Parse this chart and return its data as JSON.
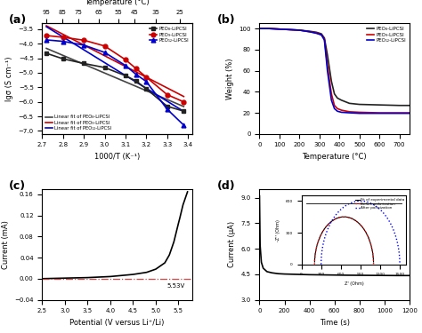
{
  "panel_a": {
    "title": "Temperature (°C)",
    "xlabel": "1000/T (K⁻¹)",
    "ylabel": "lgσ (S cm⁻¹)",
    "top_xticks": [
      95,
      85,
      75,
      65,
      55,
      45,
      35,
      25
    ],
    "top_xvals": [
      2.72,
      2.795,
      2.875,
      2.97,
      3.065,
      3.145,
      3.245,
      3.36
    ],
    "xlim": [
      2.7,
      3.42
    ],
    "ylim": [
      -7.1,
      -3.3
    ],
    "yticks": [
      -7.0,
      -6.5,
      -6.0,
      -5.5,
      -5.0,
      -4.5,
      -4.0,
      -3.5
    ],
    "series": [
      {
        "label": "PEO₈-LiPCSI",
        "color": "#222222",
        "marker": "s",
        "x": [
          2.72,
          2.8,
          2.9,
          3.0,
          3.1,
          3.15,
          3.2,
          3.3,
          3.38
        ],
        "y": [
          -4.33,
          -4.52,
          -4.68,
          -4.82,
          -5.1,
          -5.28,
          -5.55,
          -6.15,
          -6.32
        ]
      },
      {
        "label": "PEO₉-LiPCSI",
        "color": "#cc0000",
        "marker": "o",
        "x": [
          2.72,
          2.8,
          2.9,
          3.0,
          3.1,
          3.15,
          3.2,
          3.3,
          3.38
        ],
        "y": [
          -3.72,
          -3.78,
          -3.88,
          -4.08,
          -4.55,
          -4.85,
          -5.15,
          -5.75,
          -6.0
        ]
      },
      {
        "label": "PEO₁₂-LiPCSI",
        "color": "#0000cc",
        "marker": "^",
        "x": [
          2.72,
          2.8,
          2.9,
          3.0,
          3.1,
          3.15,
          3.2,
          3.3,
          3.38
        ],
        "y": [
          -3.87,
          -3.92,
          -4.05,
          -4.3,
          -4.75,
          -5.05,
          -5.3,
          -6.25,
          -6.8
        ]
      }
    ],
    "linear_labels": [
      "Linear fit of PEO₈-LiPCSI",
      "Linear fit of PEO₉-LiPCSI",
      "Linear fit of PEO₁₂-LiPCSI"
    ],
    "linear_colors": [
      "#444444",
      "#cc0000",
      "#0000cc"
    ]
  },
  "panel_b": {
    "xlabel": "Temperature (°C)",
    "ylabel": "Weight (%)",
    "xlim": [
      0,
      750
    ],
    "ylim": [
      0,
      105
    ],
    "yticks": [
      0,
      20,
      40,
      60,
      80,
      100
    ],
    "xticks": [
      0,
      100,
      200,
      300,
      400,
      500,
      600,
      700
    ],
    "series": [
      {
        "label": "PEO₈-LiPCSI",
        "color": "#222222",
        "x": [
          0,
          50,
          100,
          150,
          200,
          250,
          285,
          310,
          325,
          340,
          360,
          375,
          390,
          410,
          450,
          500,
          600,
          700,
          750
        ],
        "y": [
          100,
          100,
          99.5,
          99,
          98.5,
          97.5,
          96.5,
          95,
          91,
          75,
          50,
          38,
          34,
          32,
          29,
          28,
          27.5,
          27,
          27
        ]
      },
      {
        "label": "PEO₉-LiPCSI",
        "color": "#cc0000",
        "x": [
          0,
          50,
          100,
          150,
          200,
          250,
          285,
          310,
          325,
          340,
          360,
          375,
          390,
          410,
          450,
          500,
          600,
          700,
          750
        ],
        "y": [
          100,
          100,
          99.5,
          99,
          98.5,
          97,
          96,
          94,
          90,
          65,
          38,
          27,
          24,
          22.5,
          21,
          20.5,
          20,
          20,
          20
        ]
      },
      {
        "label": "PEO₁₂-LiPCSI",
        "color": "#0000cc",
        "x": [
          0,
          50,
          100,
          150,
          200,
          250,
          285,
          310,
          325,
          340,
          360,
          375,
          390,
          410,
          450,
          500,
          600,
          700,
          750
        ],
        "y": [
          100,
          100,
          99.5,
          99,
          98.5,
          97,
          95.5,
          94,
          89,
          60,
          32,
          24,
          21.5,
          20.5,
          20,
          19.5,
          19.5,
          19.5,
          19.5
        ]
      }
    ]
  },
  "panel_c": {
    "xlabel": "Potential (V versus Li⁺/Li)",
    "ylabel": "Current (mA)",
    "xlim": [
      2.5,
      5.8
    ],
    "ylim": [
      -0.04,
      0.17
    ],
    "yticks": [
      -0.04,
      0.0,
      0.04,
      0.08,
      0.12,
      0.16
    ],
    "xticks": [
      2.5,
      3.0,
      3.5,
      4.0,
      4.5,
      5.0,
      5.5
    ],
    "annotation": "5.53V",
    "ann_x": 5.25,
    "ann_y": -0.018,
    "hline_y": 0.0,
    "curve_x": [
      2.5,
      3.0,
      3.5,
      4.0,
      4.5,
      4.8,
      5.0,
      5.2,
      5.3,
      5.4,
      5.5,
      5.53,
      5.6,
      5.7
    ],
    "curve_y": [
      0.0,
      0.001,
      0.002,
      0.004,
      0.008,
      0.012,
      0.018,
      0.03,
      0.045,
      0.07,
      0.105,
      0.115,
      0.14,
      0.165
    ]
  },
  "panel_d": {
    "xlabel": "Time (s)",
    "ylabel": "Current (μA)",
    "xlim": [
      0,
      1200
    ],
    "ylim": [
      3.0,
      9.5
    ],
    "yticks": [
      3.0,
      4.5,
      6.0,
      7.5,
      9.0
    ],
    "xticks": [
      0,
      200,
      400,
      600,
      800,
      1000,
      1200
    ],
    "curve_x": [
      0,
      5,
      15,
      30,
      60,
      100,
      150,
      200,
      300,
      400,
      500,
      700,
      900,
      1100,
      1200
    ],
    "curve_y": [
      9.1,
      6.2,
      5.2,
      4.85,
      4.65,
      4.58,
      4.53,
      4.51,
      4.49,
      4.47,
      4.46,
      4.44,
      4.43,
      4.42,
      4.42
    ],
    "inset": {
      "xlim": [
        0,
        1600
      ],
      "ylim": [
        0,
        500
      ],
      "xlabel": "Z' (Ohm)",
      "ylabel": "-Z'' (Ohm)",
      "before_x_pts": [
        200,
        350,
        500,
        650,
        800,
        950,
        1050,
        1100,
        1050,
        950,
        800,
        650,
        500,
        350,
        200
      ],
      "before_y_pts": [
        0,
        80,
        170,
        255,
        330,
        380,
        400,
        380,
        320,
        255,
        185,
        115,
        60,
        20,
        0
      ],
      "after_x_pts": [
        400,
        550,
        700,
        850,
        1000,
        1150,
        1300,
        1400,
        1350,
        1200,
        1050,
        900,
        750,
        600,
        450,
        400
      ],
      "after_y_pts": [
        0,
        60,
        140,
        220,
        295,
        355,
        370,
        340,
        290,
        235,
        175,
        115,
        65,
        25,
        5,
        0
      ],
      "fit_label": "Fit of experimental data",
      "before_label": "Before polarization",
      "after_label": "After polarization"
    }
  }
}
